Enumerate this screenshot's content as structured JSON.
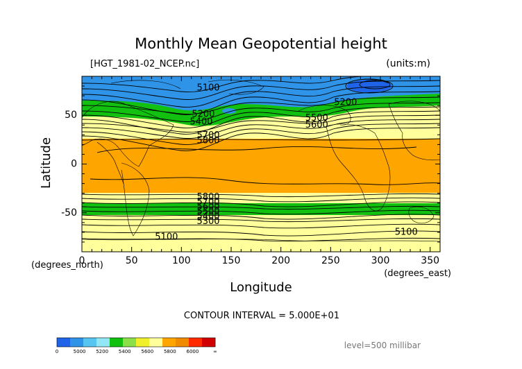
{
  "chart_data": {
    "type": "contour",
    "title": "Monthly Mean Geopotential height",
    "file_label": "[HGT_1981-02_NCEP.nc]",
    "units_label": "(units:m)",
    "xlabel": "Longitude",
    "ylabel": "Latitude",
    "x_unit_label": "(degrees_east)",
    "y_unit_label": "(degrees_north)",
    "xlim": [
      0,
      360
    ],
    "ylim": [
      -90,
      90
    ],
    "x_ticks": [
      0,
      50,
      100,
      150,
      200,
      250,
      300,
      350
    ],
    "y_ticks": [
      -50,
      0,
      50
    ],
    "contour_interval_text": "CONTOUR INTERVAL = 5.000E+01",
    "level_text": "level=500 millibar",
    "colorbar": {
      "labels": [
        "0",
        "5000",
        "5200",
        "5400",
        "5600",
        "5800",
        "6000",
        "∞"
      ],
      "colors": [
        "#1e63e8",
        "#2f93e8",
        "#56c6f0",
        "#93e6f6",
        "#12c010",
        "#8be04a",
        "#f0ef2b",
        "#ffff9b",
        "#ffa500",
        "#f08a00",
        "#ff2a00",
        "#d00000"
      ]
    },
    "fill_bands": [
      {
        "name": "<5000",
        "color": "#1e63e8"
      },
      {
        "name": "5000-5400",
        "color": "#2f93e8"
      },
      {
        "name": "5400-5600",
        "color": "#12c010"
      },
      {
        "name": "5600-5800",
        "color": "#ffff9b"
      },
      {
        "name": "5800-6000",
        "color": "#ffa500"
      }
    ],
    "contour_labels": [
      {
        "text": "5100",
        "lon": 127,
        "lat": 78
      },
      {
        "text": "5200",
        "lon": 122,
        "lat": 51
      },
      {
        "text": "5400",
        "lon": 120,
        "lat": 43
      },
      {
        "text": "5200",
        "lon": 265,
        "lat": 63
      },
      {
        "text": "5500",
        "lon": 236,
        "lat": 47
      },
      {
        "text": "5600",
        "lon": 236,
        "lat": 40
      },
      {
        "text": "5700",
        "lon": 127,
        "lat": 29
      },
      {
        "text": "5800",
        "lon": 127,
        "lat": 24
      },
      {
        "text": "5800",
        "lon": 127,
        "lat": -34
      },
      {
        "text": "5700",
        "lon": 127,
        "lat": -39
      },
      {
        "text": "5600",
        "lon": 127,
        "lat": -44
      },
      {
        "text": "5500",
        "lon": 127,
        "lat": -49
      },
      {
        "text": "5400",
        "lon": 127,
        "lat": -54
      },
      {
        "text": "5300",
        "lon": 127,
        "lat": -59
      },
      {
        "text": "5100",
        "lon": 85,
        "lat": -75
      },
      {
        "text": "5100",
        "lon": 326,
        "lat": -70
      }
    ]
  }
}
